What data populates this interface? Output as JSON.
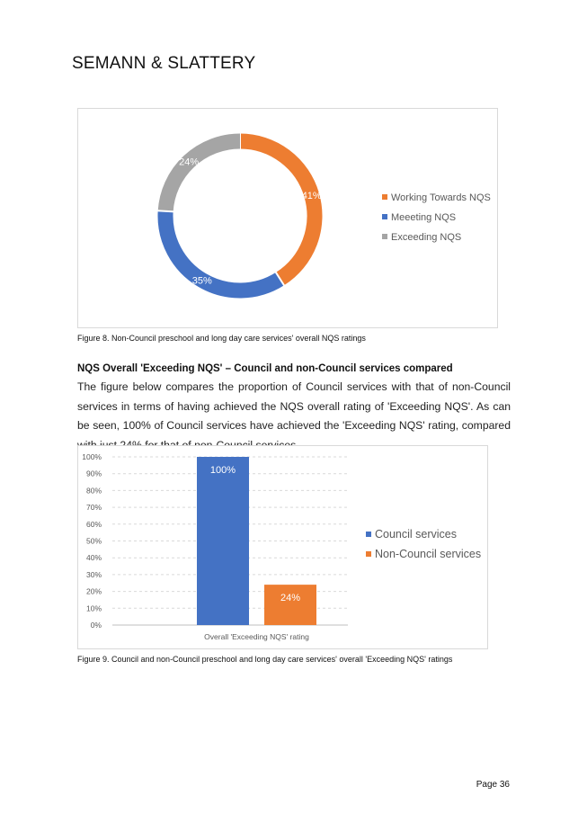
{
  "header": {
    "brand": "SEMANN & SLATTERY"
  },
  "figure8": {
    "caption": "Figure 8. Non-Council preschool and long day care services' overall NQS ratings",
    "chart_data": {
      "type": "pie",
      "donut": true,
      "slices": [
        {
          "label": "Working Towards NQS",
          "value": 41,
          "display": "41%",
          "color": "#ED7D31"
        },
        {
          "label": "Meeeting NQS",
          "value": 35,
          "display": "35%",
          "color": "#4472C4"
        },
        {
          "label": "Exceeding NQS",
          "value": 24,
          "display": "24%",
          "color": "#A5A5A5"
        }
      ],
      "legend_position": "right"
    }
  },
  "section": {
    "heading": "NQS Overall 'Exceeding NQS' – Council and non-Council services compared",
    "body": "The figure below compares the proportion of Council services with that of non-Council services in terms of having achieved the NQS overall rating of 'Exceeding NQS'. As can be seen, 100% of Council services have achieved the 'Exceeding NQS' rating, compared with just 24% for that of non-Council services."
  },
  "figure9": {
    "caption": "Figure 9. Council and non-Council preschool and long day care services' overall 'Exceeding NQS' ratings",
    "chart_data": {
      "type": "bar",
      "categories": [
        "Overall 'Exceeding NQS' rating"
      ],
      "series": [
        {
          "name": "Council services",
          "values": [
            100
          ],
          "display": "100%",
          "color": "#4472C4"
        },
        {
          "name": "Non-Council services",
          "values": [
            24
          ],
          "display": "24%",
          "color": "#ED7D31"
        }
      ],
      "ylim": [
        0,
        100
      ],
      "yticks": [
        "0%",
        "10%",
        "20%",
        "30%",
        "40%",
        "50%",
        "60%",
        "70%",
        "80%",
        "90%",
        "100%"
      ],
      "grid": true,
      "legend_position": "right"
    }
  },
  "footer": {
    "page": "Page 36"
  }
}
